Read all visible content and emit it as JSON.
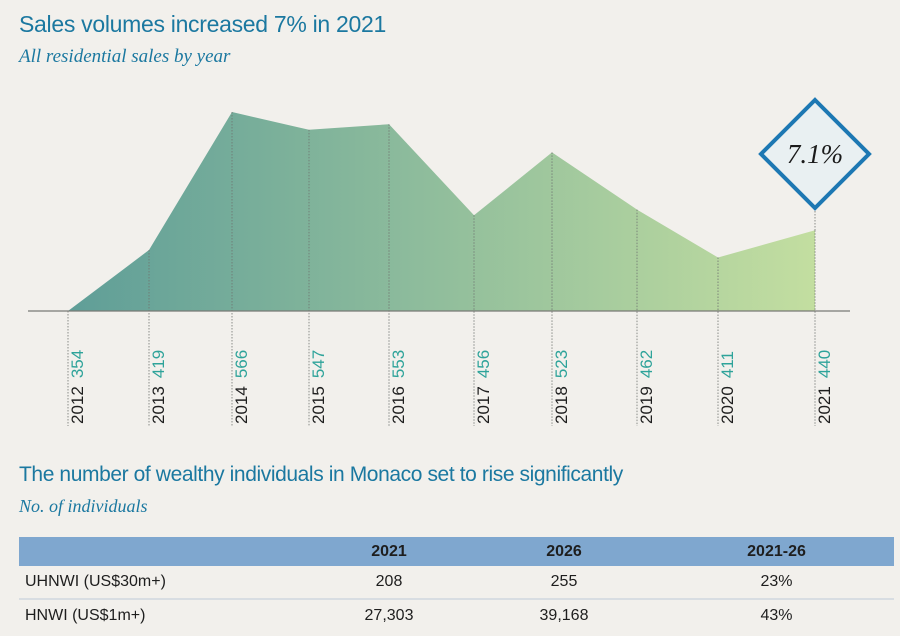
{
  "chart_data": {
    "type": "area",
    "title": "Sales volumes increased 7% in 2021",
    "subtitle": "All residential sales by year",
    "xlabel": "",
    "ylabel": "",
    "categories": [
      "2012",
      "2013",
      "2014",
      "2015",
      "2016",
      "2017",
      "2018",
      "2019",
      "2020",
      "2021"
    ],
    "values": [
      354,
      419,
      566,
      547,
      553,
      456,
      523,
      462,
      411,
      440
    ],
    "ylim": [
      354,
      566
    ],
    "grid": false,
    "annotation": {
      "text": "7.1%",
      "category": "2021"
    },
    "colors": {
      "gradient_start": "#5f9e98",
      "gradient_end": "#c3dea0",
      "label_value": "#2ea39a",
      "label_year": "#1e1e1e",
      "badge_border": "#1d78b3",
      "badge_fill": "#e9f0f2"
    }
  },
  "table": {
    "title": "The number of wealthy individuals in Monaco set to rise significantly",
    "subtitle": "No. of individuals",
    "headers": [
      "",
      "2021",
      "2026",
      "2021-26"
    ],
    "rows": [
      [
        "UHNWI (US$30m+)",
        "208",
        "255",
        "23%"
      ],
      [
        "HNWI (US$1m+)",
        "27,303",
        "39,168",
        "43%"
      ]
    ]
  }
}
